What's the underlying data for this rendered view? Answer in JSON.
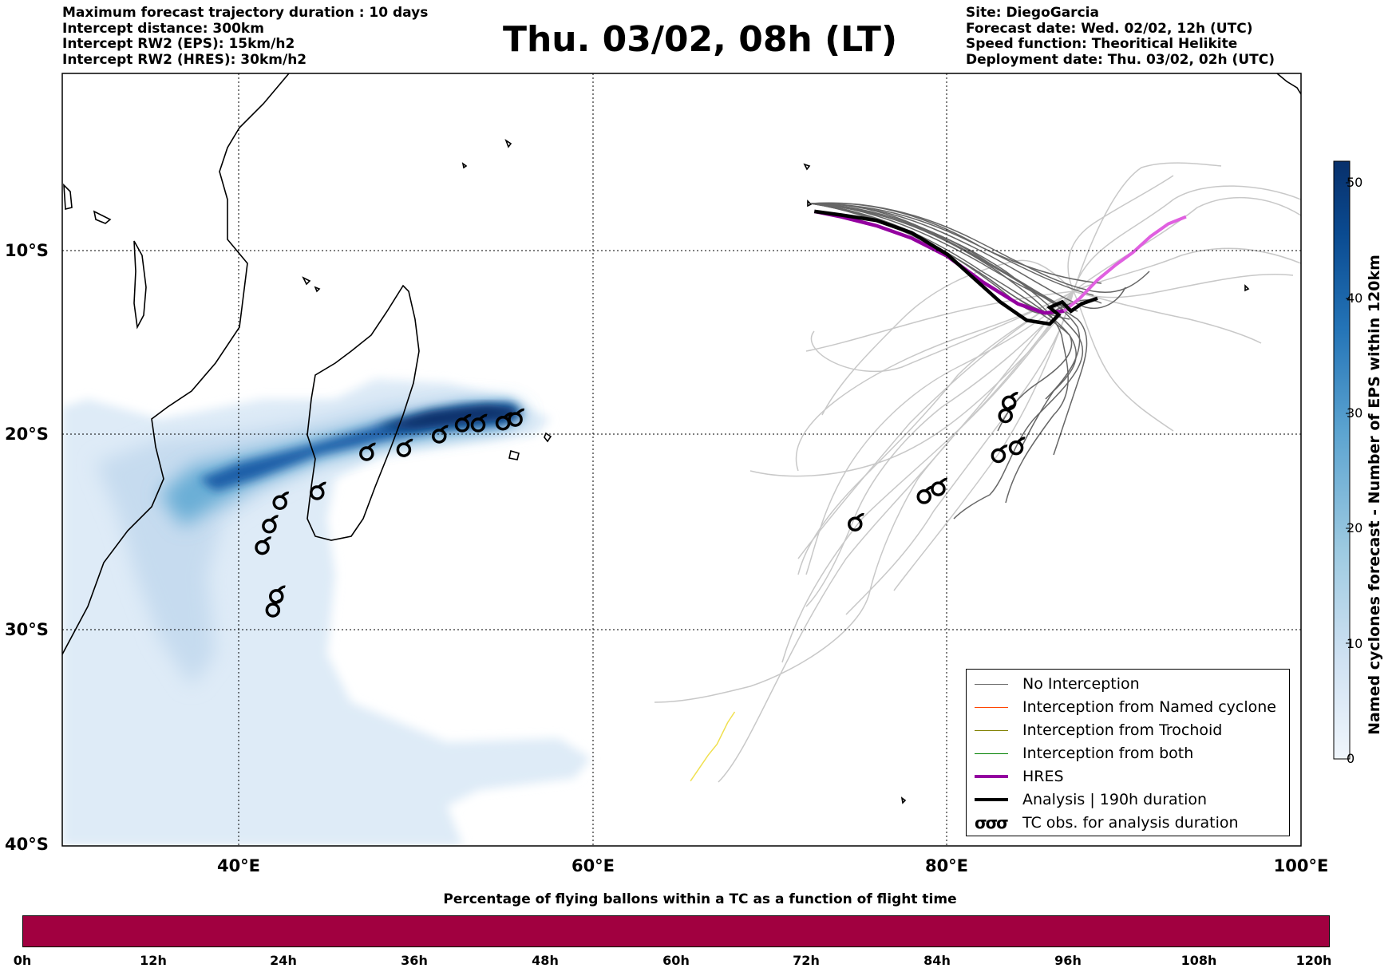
{
  "header": {
    "left_lines": [
      "Maximum forecast trajectory duration : 10 days",
      "Intercept distance: 300km",
      "Intercept RW2 (EPS):  15km/h2",
      "Intercept RW2 (HRES): 30km/h2"
    ],
    "title": "Thu. 03/02, 08h (LT)",
    "right_lines": [
      "Site: DiegoGarcia",
      "Forecast date: Wed. 02/02, 12h (UTC)",
      "Speed function: Theoritical Helikite",
      "Deployment date: Thu. 03/02, 02h (UTC)"
    ]
  },
  "map": {
    "lon_range": [
      30,
      100
    ],
    "lat_range": [
      -40,
      0
    ],
    "lat_labels": [
      "10°S",
      "20°S",
      "30°S",
      "40°S"
    ],
    "lon_labels": [
      "40°E",
      "60°E",
      "80°E",
      "100°E"
    ],
    "grid": "dotted",
    "colors": {
      "no_interception": "#666666",
      "ensemble_light": "#c8c8c8",
      "hres": "#9400a0",
      "hres_light": "#e060e0",
      "analysis": "#000000",
      "interception_named": "#ff4500",
      "interception_trochoid": "#808000",
      "interception_both": "#008000",
      "yellow_track": "#f0e050"
    },
    "tc_obs_west": [
      [
        55.6,
        -19.2
      ],
      [
        54.9,
        -19.4
      ],
      [
        53.5,
        -19.5
      ],
      [
        52.6,
        -19.5
      ],
      [
        51.3,
        -20.1
      ],
      [
        49.3,
        -20.8
      ],
      [
        47.2,
        -21.0
      ],
      [
        44.4,
        -23.0
      ],
      [
        42.3,
        -23.5
      ],
      [
        41.7,
        -24.7
      ],
      [
        41.3,
        -25.8
      ],
      [
        42.1,
        -28.3
      ],
      [
        41.9,
        -29.0
      ]
    ],
    "tc_obs_east": [
      [
        83.5,
        -18.3
      ],
      [
        83.3,
        -19.0
      ],
      [
        83.9,
        -20.7
      ],
      [
        82.9,
        -21.1
      ],
      [
        79.5,
        -22.8
      ],
      [
        78.7,
        -23.2
      ],
      [
        74.8,
        -24.6
      ]
    ],
    "hres_track": [
      [
        72.5,
        -7.8
      ],
      [
        74,
        -8.1
      ],
      [
        76,
        -8.6
      ],
      [
        78,
        -9.3
      ],
      [
        80,
        -10.3
      ],
      [
        82,
        -11.7
      ],
      [
        84,
        -12.9
      ],
      [
        85.5,
        -13.4
      ],
      [
        86.6,
        -13.3
      ],
      [
        87.5,
        -12.6
      ],
      [
        88.5,
        -11.6
      ],
      [
        89.5,
        -10.8
      ],
      [
        90.5,
        -10.1
      ],
      [
        91.5,
        -9.2
      ],
      [
        92.5,
        -8.5
      ],
      [
        93.5,
        -8.1
      ]
    ],
    "analysis_track": [
      [
        72.5,
        -7.8
      ],
      [
        74,
        -8.0
      ],
      [
        76,
        -8.3
      ],
      [
        78,
        -9.0
      ],
      [
        80,
        -10.2
      ],
      [
        81.5,
        -11.5
      ],
      [
        83,
        -12.8
      ],
      [
        84.5,
        -13.8
      ],
      [
        85.8,
        -14.0
      ],
      [
        86.3,
        -13.5
      ],
      [
        85.8,
        -13.1
      ],
      [
        86.5,
        -12.8
      ],
      [
        87,
        -13.3
      ],
      [
        87.6,
        -12.9
      ],
      [
        88.5,
        -12.6
      ]
    ],
    "yellow_track": [
      [
        68.0,
        -33.8
      ],
      [
        67.6,
        -34.3
      ],
      [
        67.0,
        -35.3
      ],
      [
        66.5,
        -35.8
      ],
      [
        65.5,
        -37.0
      ]
    ],
    "colorbar": {
      "label": "Named cyclones forecast - Number of EPS within 120km",
      "ticks": [
        "0",
        "10",
        "20",
        "30",
        "40",
        "50"
      ],
      "max": 52,
      "colors": [
        "#f0f6fc",
        "#cfe1f2",
        "#9dcae1",
        "#5ba3d0",
        "#2474b7",
        "#0a4a90",
        "#08306b"
      ]
    }
  },
  "legend": {
    "items": [
      {
        "label": "No Interception",
        "color": "#666666",
        "width": 1.5
      },
      {
        "label": "Interception from Named cyclone",
        "color": "#ff4500",
        "width": 1.5
      },
      {
        "label": "Interception from Trochoid",
        "color": "#808000",
        "width": 1.5
      },
      {
        "label": "Interception from both",
        "color": "#008000",
        "width": 1.5
      },
      {
        "label": "HRES",
        "color": "#9400a0",
        "width": 4
      },
      {
        "label": "Analysis | 190h duration",
        "color": "#000000",
        "width": 4
      }
    ],
    "tc_obs_label": "TC obs. for analysis duration",
    "tc_obs_icon": "σσσ"
  },
  "bottom": {
    "title": "Percentage of flying ballons within a TC as a function of flight time",
    "color": "#a10040",
    "ticks": [
      "0h",
      "12h",
      "24h",
      "36h",
      "48h",
      "60h",
      "72h",
      "84h",
      "96h",
      "108h",
      "120h"
    ]
  }
}
